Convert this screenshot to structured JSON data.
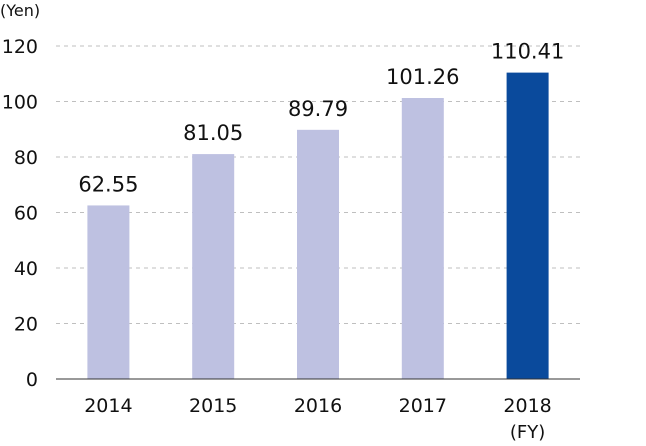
{
  "chart_data": {
    "type": "bar",
    "y_unit_label": "(Yen)",
    "x_unit_label": "(FY)",
    "categories": [
      "2014",
      "2015",
      "2016",
      "2017",
      "2018"
    ],
    "values": [
      62.55,
      81.05,
      89.79,
      101.26,
      110.41
    ],
    "value_labels": [
      "62.55",
      "81.05",
      "89.79",
      "101.26",
      "110.41"
    ],
    "ylim": [
      0,
      120
    ],
    "yticks": [
      0,
      20,
      40,
      60,
      80,
      100,
      120
    ],
    "grid": true,
    "grid_style": "dashed",
    "legend": "none",
    "colors": {
      "default_bar": "#bec1e1",
      "highlight_bar": "#0a4a9c",
      "default_label": "#111111",
      "highlight_label": "#0a4a9c",
      "grid": "#bfbfbf",
      "axis": "#333333"
    },
    "highlight_index": 4
  }
}
